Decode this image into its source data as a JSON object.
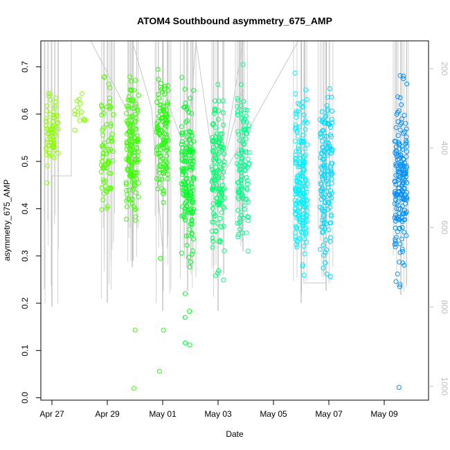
{
  "chart_data": {
    "type": "scatter",
    "title": "ATOM4 Southbound asymmetry_675_AMP",
    "xlabel": "Date",
    "ylabel": "asymmetry_675_AMP",
    "xlim_day": [
      26.6,
      40.6
    ],
    "ylim": [
      -0.005,
      0.755
    ],
    "y2lim": [
      1035,
      130
    ],
    "x_ticks": [
      {
        "day": 27,
        "label": "Apr 27"
      },
      {
        "day": 29,
        "label": "Apr 29"
      },
      {
        "day": 31,
        "label": "May 01"
      },
      {
        "day": 33,
        "label": "May 03"
      },
      {
        "day": 35,
        "label": "May 05"
      },
      {
        "day": 37,
        "label": "May 07"
      },
      {
        "day": 39,
        "label": "May 09"
      }
    ],
    "y_ticks": [
      0.0,
      0.1,
      0.2,
      0.3,
      0.4,
      0.5,
      0.6,
      0.7
    ],
    "y_tick_labels": [
      "0.0",
      "0.1",
      "0.2",
      "0.3",
      "0.4",
      "0.5",
      "0.6",
      "0.7"
    ],
    "y2_ticks": [
      200,
      400,
      600,
      800,
      1000
    ],
    "y2_tick_labels": [
      "200",
      "400",
      "600",
      "800",
      "1000"
    ],
    "colors": {
      "point_scale": [
        "#80ff00",
        "#00ff40",
        "#00ffd0",
        "#00c0ff",
        "#0070ff"
      ],
      "depth_line": "#c8c8c8"
    },
    "clusters": [
      {
        "day": 27.0,
        "lo": 0.45,
        "hi": 0.68,
        "n": 70,
        "seed": 11,
        "color": "#8cff00",
        "outliers": []
      },
      {
        "day": 28.0,
        "lo": 0.54,
        "hi": 0.67,
        "n": 14,
        "seed": 12,
        "color": "#80ff00",
        "outliers": []
      },
      {
        "day": 29.0,
        "lo": 0.34,
        "hi": 0.7,
        "n": 75,
        "seed": 13,
        "color": "#55ff00",
        "outliers": []
      },
      {
        "day": 29.9,
        "lo": 0.33,
        "hi": 0.72,
        "n": 150,
        "seed": 14,
        "color": "#3cff00",
        "outliers": [
          0.143,
          0.02
        ]
      },
      {
        "day": 31.0,
        "lo": 0.38,
        "hi": 0.73,
        "n": 110,
        "seed": 15,
        "color": "#1cff00",
        "outliers": [
          0.295,
          0.143,
          0.056
        ]
      },
      {
        "day": 31.9,
        "lo": 0.25,
        "hi": 0.7,
        "n": 160,
        "seed": 16,
        "color": "#00ff24",
        "outliers": [
          0.22,
          0.183,
          0.17,
          0.116,
          0.112
        ]
      },
      {
        "day": 33.0,
        "lo": 0.24,
        "hi": 0.69,
        "n": 140,
        "seed": 17,
        "color": "#00ff6c",
        "outliers": []
      },
      {
        "day": 33.9,
        "lo": 0.27,
        "hi": 0.71,
        "n": 110,
        "seed": 18,
        "color": "#00ff8c",
        "outliers": []
      },
      {
        "day": 36.0,
        "lo": 0.2,
        "hi": 0.71,
        "n": 190,
        "seed": 19,
        "color": "#00f0ff",
        "outliers": []
      },
      {
        "day": 36.9,
        "lo": 0.23,
        "hi": 0.7,
        "n": 150,
        "seed": 20,
        "color": "#00d8ff",
        "outliers": []
      },
      {
        "day": 39.6,
        "lo": 0.21,
        "hi": 0.71,
        "n": 180,
        "seed": 21,
        "color": "#0090ff",
        "outliers": [
          0.022
        ]
      }
    ],
    "depth_profiles": [
      {
        "day": 27.0,
        "bottom": 800,
        "seed": 31
      },
      {
        "day": 29.0,
        "bottom": 790,
        "seed": 32
      },
      {
        "day": 29.9,
        "bottom": 700,
        "seed": 33
      },
      {
        "day": 31.0,
        "bottom": 810,
        "seed": 34
      },
      {
        "day": 31.9,
        "bottom": 760,
        "seed": 35
      },
      {
        "day": 33.0,
        "bottom": 810,
        "seed": 36
      },
      {
        "day": 33.9,
        "bottom": 660,
        "seed": 37
      },
      {
        "day": 36.0,
        "bottom": 790,
        "seed": 38
      },
      {
        "day": 36.9,
        "bottom": 760,
        "seed": 39
      },
      {
        "day": 39.6,
        "bottom": 770,
        "seed": 40
      }
    ],
    "track": [
      [
        27.0,
        130
      ],
      [
        27.0,
        470
      ],
      [
        27.7,
        470
      ],
      [
        27.7,
        130
      ],
      [
        28.4,
        130
      ],
      [
        29.9,
        330
      ],
      [
        29.9,
        130
      ],
      [
        30.6,
        300
      ],
      [
        31.0,
        660
      ],
      [
        31.0,
        250
      ],
      [
        31.9,
        420
      ],
      [
        32.2,
        130
      ],
      [
        33.0,
        520
      ],
      [
        33.9,
        130
      ],
      [
        33.9,
        250
      ],
      [
        33.0,
        490
      ],
      [
        35.9,
        130
      ],
      [
        36.1,
        130
      ],
      [
        36.1,
        740
      ],
      [
        36.9,
        740
      ]
    ]
  }
}
